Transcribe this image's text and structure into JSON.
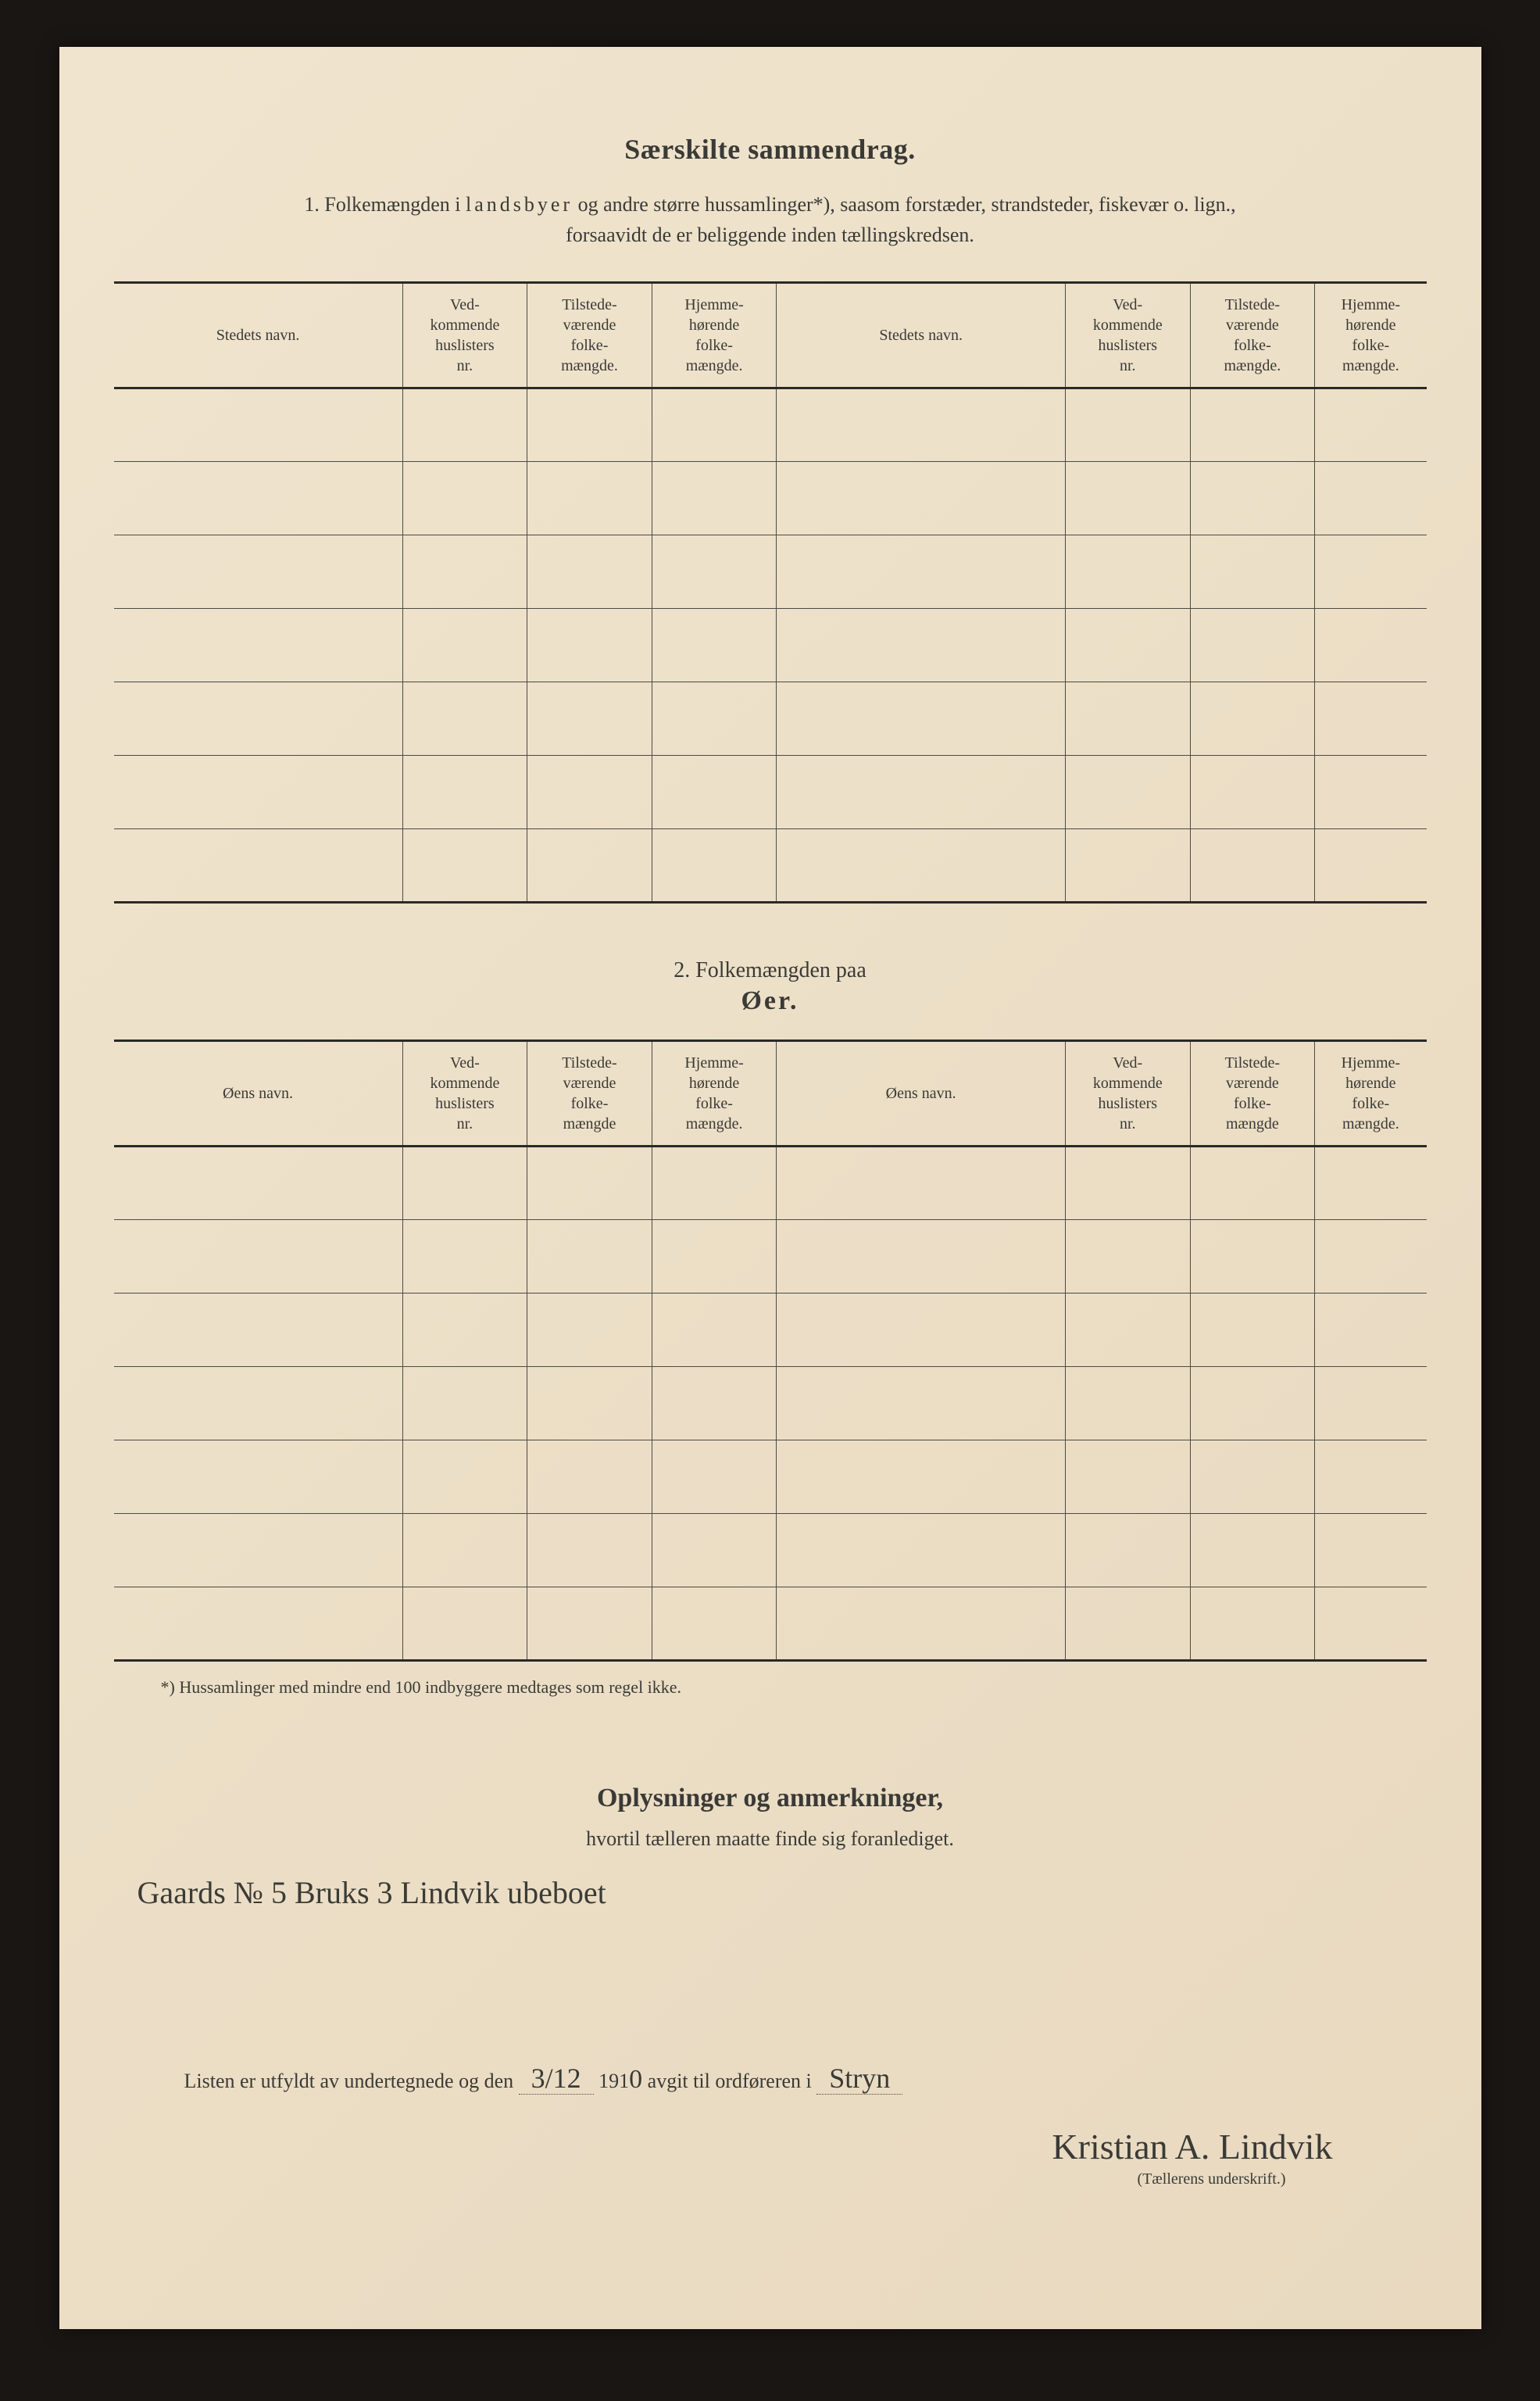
{
  "title": "Særskilte sammendrag.",
  "intro_num": "1.",
  "intro_text_a": "Folkemængden i ",
  "intro_text_spaced": "landsbyer",
  "intro_text_b": " og andre større hussamlinger*), saasom forstæder, strandsteder, fiskevær o. lign.,",
  "intro_text_c": "forsaavidt de er beliggende inden tællingskredsen.",
  "table1": {
    "type": "table",
    "columns": [
      "Stedets navn.",
      "Ved-\nkommende\nhuslisters\nnr.",
      "Tilstede-\nværende\nfolke-\nmængde.",
      "Hjemme-\nhørende\nfolke-\nmængde.",
      "Stedets navn.",
      "Ved-\nkommende\nhuslisters\nnr.",
      "Tilstede-\nværende\nfolke-\nmængde.",
      "Hjemme-\nhørende\nfolke-\nmængde."
    ],
    "rows": 7,
    "border_color": "#4a4a44",
    "heavy_border_color": "#2a2a26"
  },
  "section2_heading": "2.    Folkemængden paa",
  "section2_sub": "Øer.",
  "table2": {
    "type": "table",
    "columns": [
      "Øens navn.",
      "Ved-\nkommende\nhuslisters\nnr.",
      "Tilstede-\nværende\nfolke-\nmængde",
      "Hjemme-\nhørende\nfolke-\nmængde.",
      "Øens navn.",
      "Ved-\nkommende\nhuslisters\nnr.",
      "Tilstede-\nværende\nfolke-\nmængde",
      "Hjemme-\nhørende\nfolke-\nmængde."
    ],
    "rows": 7,
    "border_color": "#4a4a44",
    "heavy_border_color": "#2a2a26"
  },
  "footnote": "*)  Hussamlinger med mindre end 100 indbyggere medtages som regel ikke.",
  "remarks_title": "Oplysninger og anmerkninger,",
  "remarks_sub": "hvortil tælleren maatte finde sig foranlediget.",
  "handwritten_note": "Gaards № 5 Bruks 3 Lindvik ubeboet",
  "signature": {
    "line_a": "Listen er utfyldt av undertegnede og den",
    "date": "3/12",
    "year_prefix": "191",
    "year_last": "0",
    "line_b": "avgit til ordføreren i",
    "place": "Stryn",
    "name": "Kristian A. Lindvik",
    "caption": "(Tællerens underskrift.)"
  },
  "colors": {
    "page_bg": "#ede0c8",
    "frame_bg": "#1a1614",
    "text": "#3a3a36"
  },
  "typography": {
    "title_fontsize": 36,
    "body_fontsize": 26,
    "table_fontsize": 20,
    "handwriting_fontsize": 40
  }
}
